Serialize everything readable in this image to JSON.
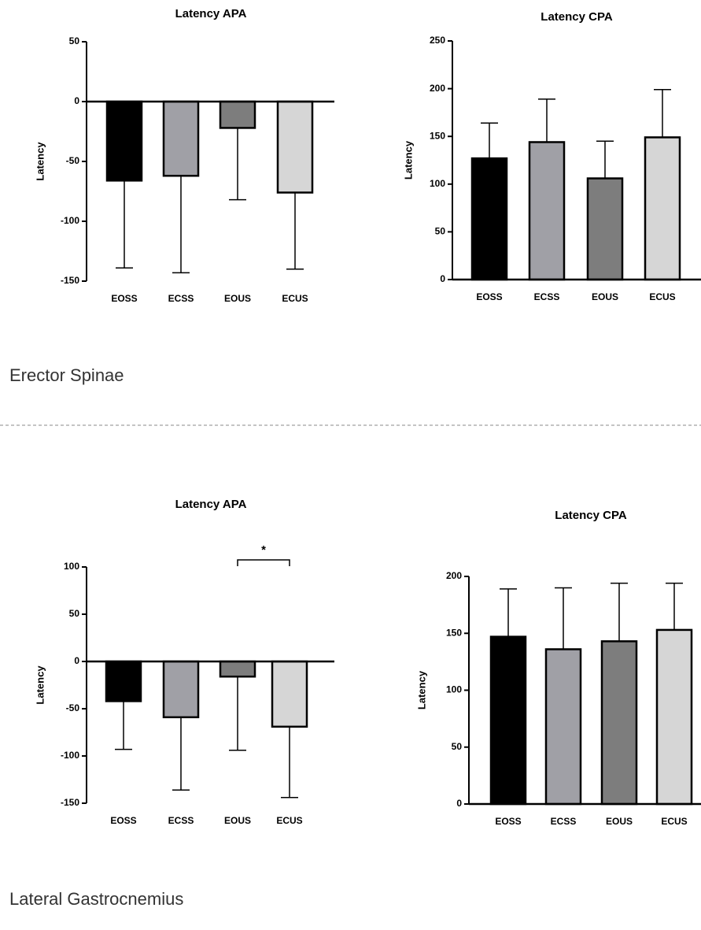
{
  "sections": [
    "Erector Spinae",
    "Lateral Gastrocnemius"
  ],
  "chart_data": [
    {
      "type": "bar",
      "title": "Latency APA",
      "y_label": "Latency",
      "categories": [
        "EOSS",
        "ECSS",
        "EOUS",
        "ECUS"
      ],
      "values": [
        -66,
        -62,
        -22,
        -76
      ],
      "errors": [
        73,
        81,
        60,
        64
      ],
      "colors": [
        "#000000",
        "#a0a0a6",
        "#7d7d7d",
        "#d6d6d6"
      ],
      "ylim": [
        -150,
        50
      ],
      "yticks": [
        -150,
        -100,
        -50,
        0,
        50
      ]
    },
    {
      "type": "bar",
      "title": "Latency CPA",
      "y_label": "Latency",
      "categories": [
        "EOSS",
        "ECSS",
        "EOUS",
        "ECUS"
      ],
      "values": [
        127,
        144,
        106,
        149
      ],
      "errors": [
        37,
        45,
        39,
        50
      ],
      "colors": [
        "#000000",
        "#a0a0a6",
        "#7d7d7d",
        "#d6d6d6"
      ],
      "ylim": [
        0,
        250
      ],
      "yticks": [
        0,
        50,
        100,
        150,
        200,
        250
      ]
    },
    {
      "type": "bar",
      "title": "Latency APA",
      "y_label": "Latency",
      "categories": [
        "EOSS",
        "ECSS",
        "EOUS",
        "ECUS"
      ],
      "values": [
        -42,
        -59,
        -16,
        -69
      ],
      "errors": [
        51,
        77,
        78,
        75
      ],
      "colors": [
        "#000000",
        "#a0a0a6",
        "#7d7d7d",
        "#d6d6d6"
      ],
      "ylim": [
        -150,
        100
      ],
      "yticks": [
        -150,
        -100,
        -50,
        0,
        50,
        100
      ],
      "annotations": [
        {
          "text": "*",
          "between": [
            "EOUS",
            "ECUS"
          ]
        }
      ]
    },
    {
      "type": "bar",
      "title": "Latency CPA",
      "y_label": "Latency",
      "categories": [
        "EOSS",
        "ECSS",
        "EOUS",
        "ECUS"
      ],
      "values": [
        147,
        136,
        143,
        153
      ],
      "errors": [
        42,
        54,
        51,
        41
      ],
      "colors": [
        "#000000",
        "#a0a0a6",
        "#7d7d7d",
        "#d6d6d6"
      ],
      "ylim": [
        0,
        200
      ],
      "yticks": [
        0,
        50,
        100,
        150,
        200
      ]
    }
  ]
}
